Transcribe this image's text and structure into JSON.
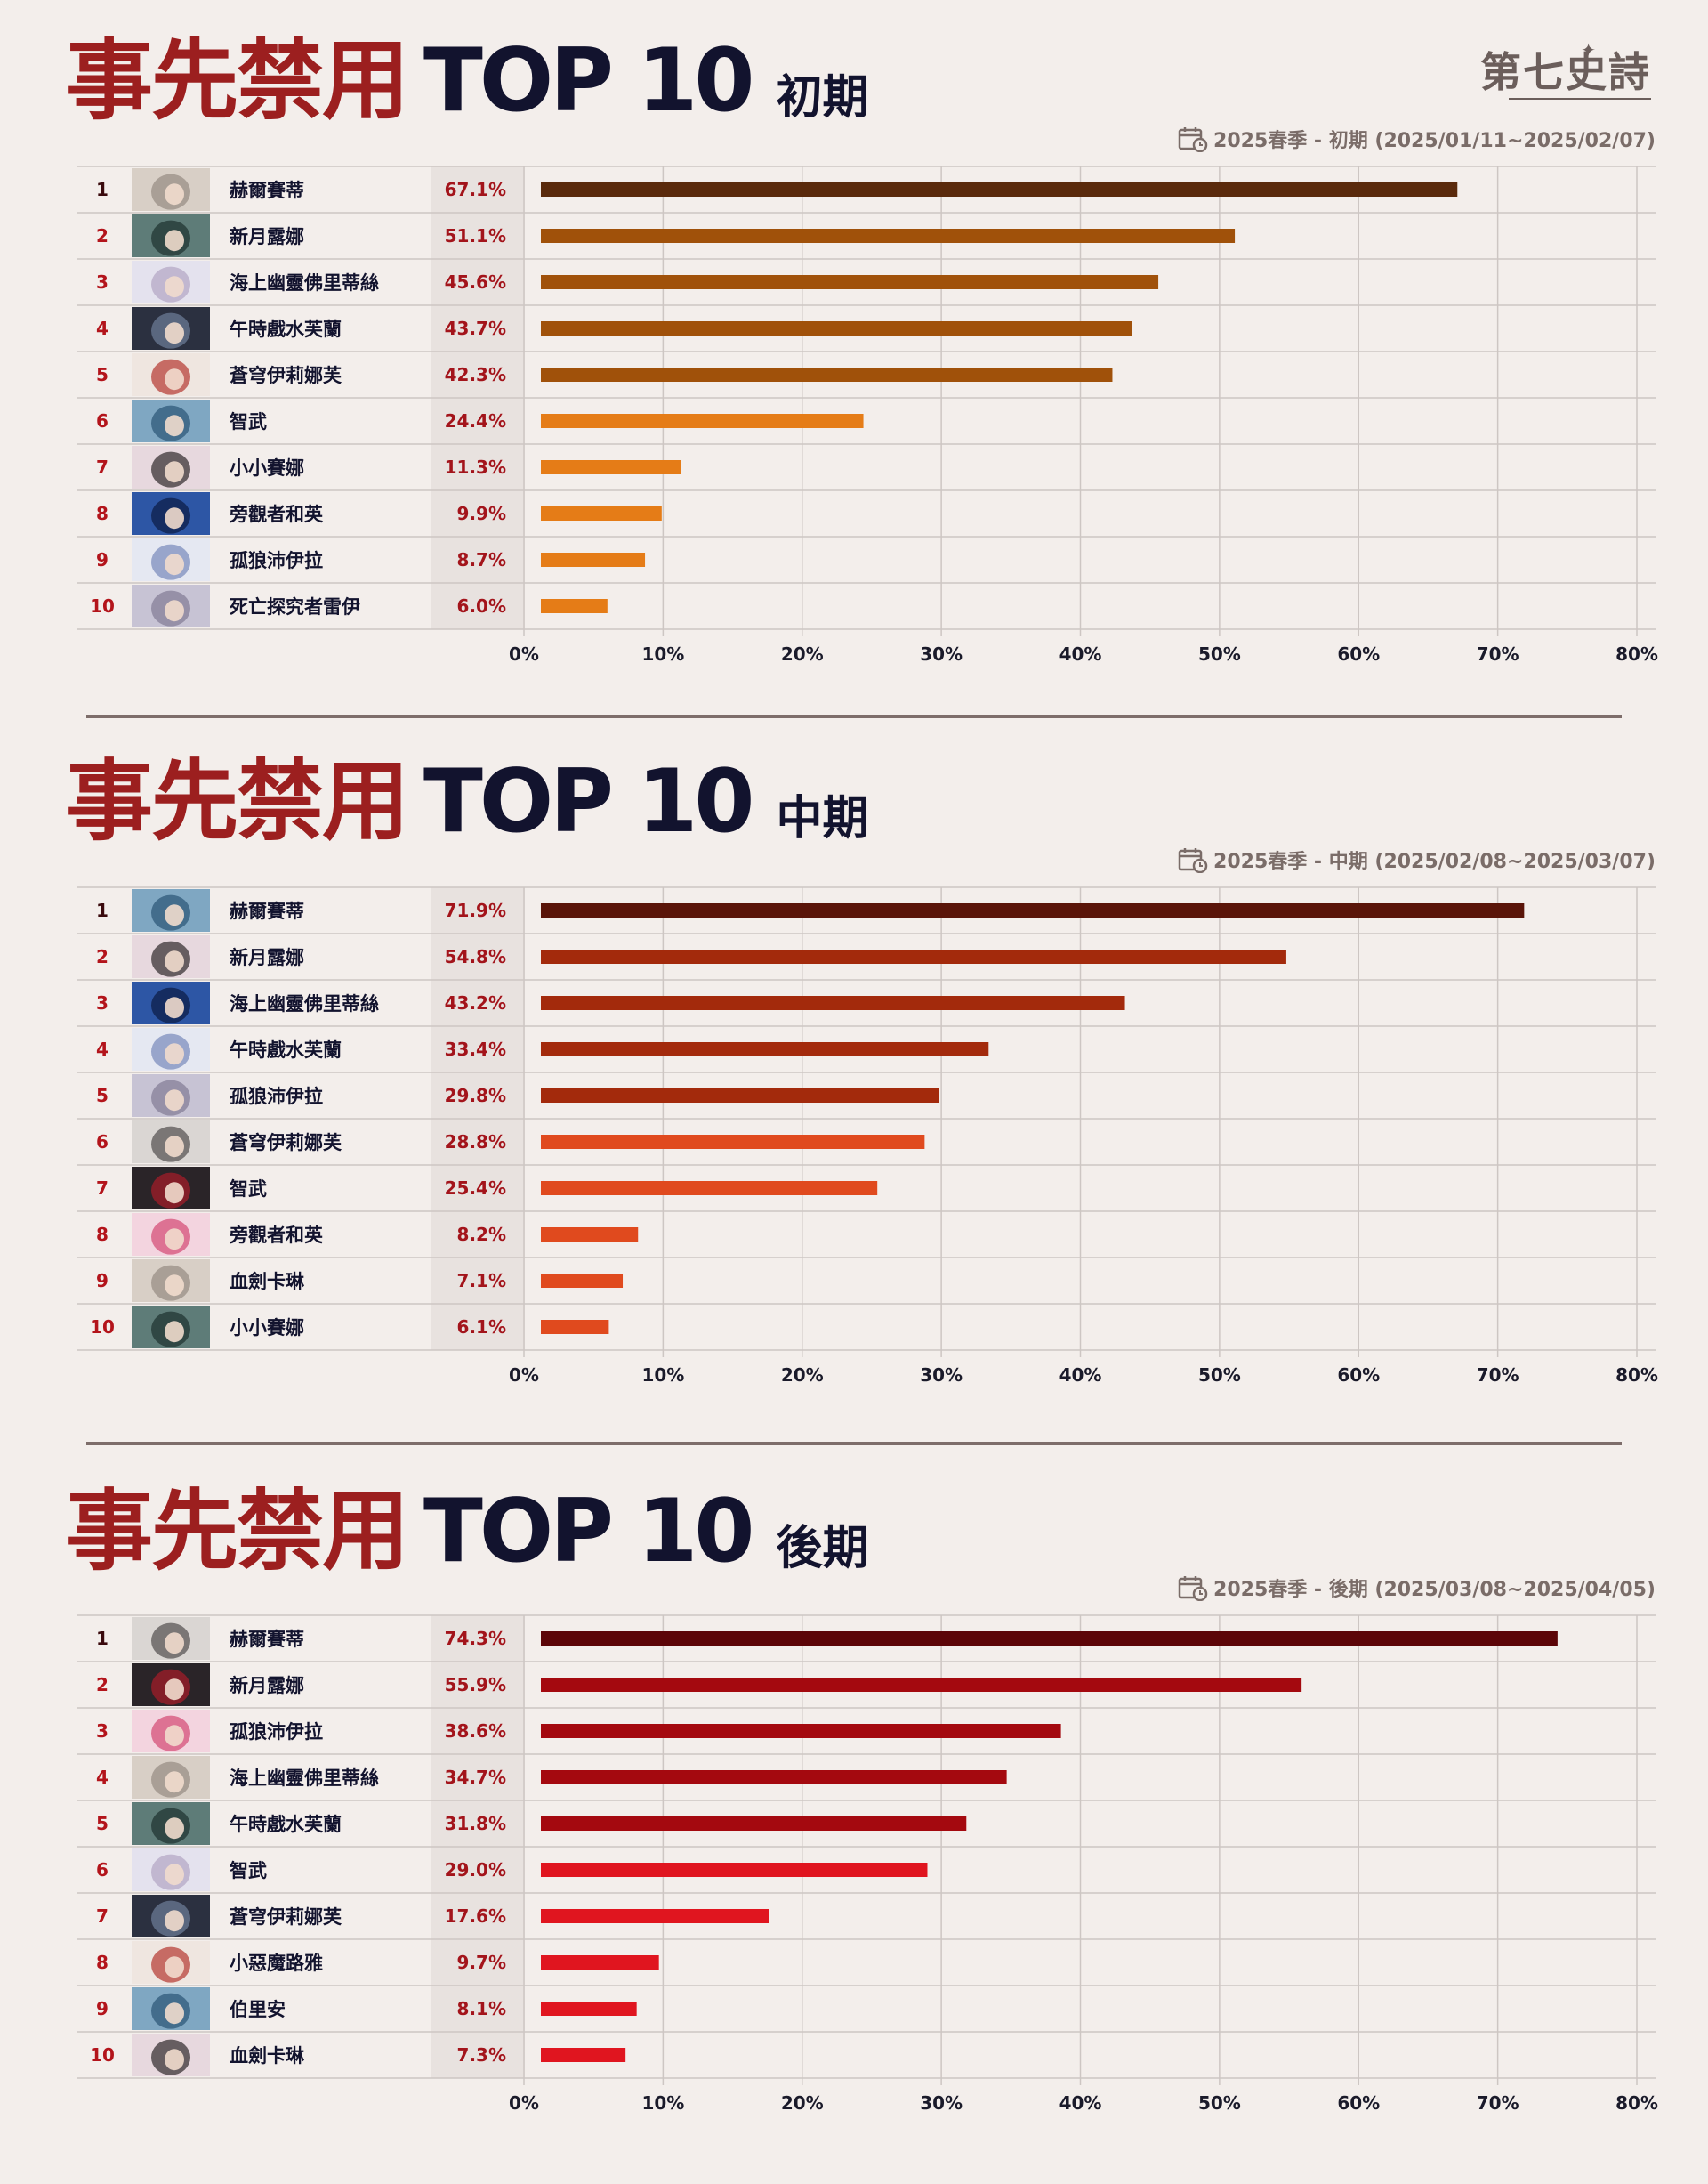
{
  "logo": "第七史詩",
  "sections": [
    {
      "title_main": "事先禁用",
      "title_top": "TOP 10",
      "title_phase": "初期",
      "period": "2025春季 - 初期 (2025/01/11~2025/02/07)"
    },
    {
      "title_main": "事先禁用",
      "title_top": "TOP 10",
      "title_phase": "中期",
      "period": "2025春季 - 中期 (2025/02/08~2025/03/07)"
    },
    {
      "title_main": "事先禁用",
      "title_top": "TOP 10",
      "title_phase": "後期",
      "period": "2025春季 - 後期 (2025/03/08~2025/04/05)"
    }
  ],
  "chart_data": [
    {
      "type": "bar",
      "orientation": "horizontal",
      "title": "事先禁用 TOP 10 初期",
      "xlim": [
        0,
        80
      ],
      "x_ticks": [
        "0%",
        "10%",
        "20%",
        "30%",
        "40%",
        "50%",
        "60%",
        "70%",
        "80%"
      ],
      "grid": true,
      "ranks": [
        "1",
        "2",
        "3",
        "4",
        "5",
        "6",
        "7",
        "8",
        "9",
        "10"
      ],
      "categories": [
        "赫爾賽蒂",
        "新月露娜",
        "海上幽靈佛里蒂絲",
        "午時戲水芙蘭",
        "蒼穹伊莉娜芙",
        "智武",
        "小小賽娜",
        "旁觀者和英",
        "孤狼沛伊拉",
        "死亡探究者雷伊"
      ],
      "values": [
        67.1,
        51.1,
        45.6,
        43.7,
        42.3,
        24.4,
        11.3,
        9.9,
        8.7,
        6.0
      ],
      "value_labels": [
        "67.1%",
        "51.1%",
        "45.6%",
        "43.7%",
        "42.3%",
        "24.4%",
        "11.3%",
        "9.9%",
        "8.7%",
        "6.0%"
      ],
      "bar_colors": [
        "#5a2a0c",
        "#a0510a",
        "#a0510a",
        "#a0510a",
        "#a0510a",
        "#e57c17",
        "#e57c17",
        "#e57c17",
        "#e57c17",
        "#e57c17"
      ]
    },
    {
      "type": "bar",
      "orientation": "horizontal",
      "title": "事先禁用 TOP 10 中期",
      "xlim": [
        0,
        80
      ],
      "x_ticks": [
        "0%",
        "10%",
        "20%",
        "30%",
        "40%",
        "50%",
        "60%",
        "70%",
        "80%"
      ],
      "grid": true,
      "ranks": [
        "1",
        "2",
        "3",
        "4",
        "5",
        "6",
        "7",
        "8",
        "9",
        "10"
      ],
      "categories": [
        "赫爾賽蒂",
        "新月露娜",
        "海上幽靈佛里蒂絲",
        "午時戲水芙蘭",
        "孤狼沛伊拉",
        "蒼穹伊莉娜芙",
        "智武",
        "旁觀者和英",
        "血劍卡琳",
        "小小賽娜"
      ],
      "values": [
        71.9,
        54.8,
        43.2,
        33.4,
        29.8,
        28.8,
        25.4,
        8.2,
        7.1,
        6.1
      ],
      "value_labels": [
        "71.9%",
        "54.8%",
        "43.2%",
        "33.4%",
        "29.8%",
        "28.8%",
        "25.4%",
        "8.2%",
        "7.1%",
        "6.1%"
      ],
      "bar_colors": [
        "#5a1509",
        "#a32a0c",
        "#a32a0c",
        "#a32a0c",
        "#a32a0c",
        "#e04a1e",
        "#e04a1e",
        "#e04a1e",
        "#e04a1e",
        "#e04a1e"
      ]
    },
    {
      "type": "bar",
      "orientation": "horizontal",
      "title": "事先禁用 TOP 10 後期",
      "xlim": [
        0,
        80
      ],
      "x_ticks": [
        "0%",
        "10%",
        "20%",
        "30%",
        "40%",
        "50%",
        "60%",
        "70%",
        "80%"
      ],
      "grid": true,
      "ranks": [
        "1",
        "2",
        "3",
        "4",
        "5",
        "6",
        "7",
        "8",
        "9",
        "10"
      ],
      "categories": [
        "赫爾賽蒂",
        "新月露娜",
        "孤狼沛伊拉",
        "海上幽靈佛里蒂絲",
        "午時戲水芙蘭",
        "智武",
        "蒼穹伊莉娜芙",
        "小惡魔路雅",
        "伯里安",
        "血劍卡琳"
      ],
      "values": [
        74.3,
        55.9,
        38.6,
        34.7,
        31.8,
        29.0,
        17.6,
        9.7,
        8.1,
        7.3
      ],
      "value_labels": [
        "74.3%",
        "55.9%",
        "38.6%",
        "34.7%",
        "31.8%",
        "29.0%",
        "17.6%",
        "9.7%",
        "8.1%",
        "7.3%"
      ],
      "bar_colors": [
        "#5c0508",
        "#a4090f",
        "#a4090f",
        "#a4090f",
        "#a4090f",
        "#e0151f",
        "#e0151f",
        "#e0151f",
        "#e0151f",
        "#e0151f"
      ]
    }
  ],
  "colors": {
    "background": "#f3eeeb",
    "title_red": "#9c1f1f",
    "title_navy": "#12132e",
    "rank_color": "#b3141b",
    "value_color": "#a3141b",
    "grid": "#cdc6c3",
    "divider": "#7d6d6a"
  }
}
